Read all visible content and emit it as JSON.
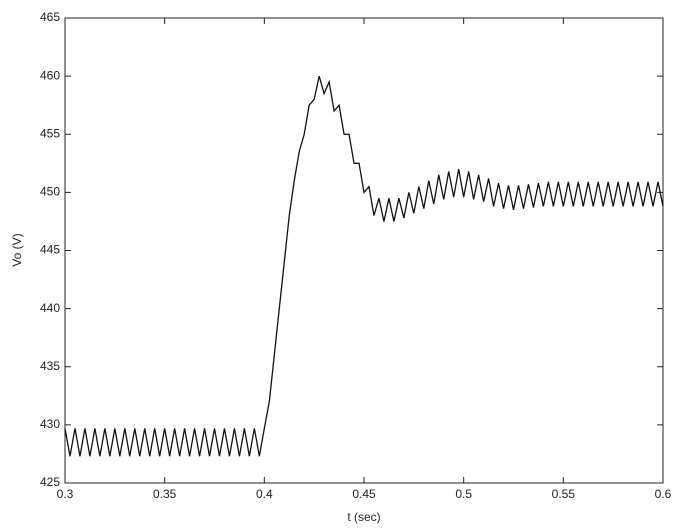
{
  "chart_data": {
    "type": "line",
    "xlabel": "t (sec)",
    "ylabel": "Vo (V)",
    "color": "#111111",
    "xlim": [
      0.3,
      0.6
    ],
    "xticks": [
      0.3,
      0.35,
      0.4,
      0.45,
      0.5,
      0.55,
      0.6
    ],
    "ylim": [
      425,
      465
    ],
    "yticks": [
      425,
      430,
      435,
      440,
      445,
      450,
      455,
      460,
      465
    ],
    "x": [
      0.3,
      0.3025,
      0.305,
      0.3075,
      0.31,
      0.3125,
      0.315,
      0.3175,
      0.32,
      0.3225,
      0.325,
      0.3275,
      0.33,
      0.3325,
      0.335,
      0.3375,
      0.34,
      0.3425,
      0.345,
      0.3475,
      0.35,
      0.3525,
      0.355,
      0.3575,
      0.36,
      0.3625,
      0.365,
      0.3675,
      0.37,
      0.3725,
      0.375,
      0.3775,
      0.38,
      0.3825,
      0.385,
      0.3875,
      0.39,
      0.3925,
      0.395,
      0.3975,
      0.4,
      0.4025,
      0.405,
      0.4075,
      0.41,
      0.4125,
      0.415,
      0.4175,
      0.42,
      0.4225,
      0.425,
      0.4275,
      0.43,
      0.4325,
      0.435,
      0.4375,
      0.44,
      0.4425,
      0.445,
      0.4475,
      0.45,
      0.4525,
      0.455,
      0.4575,
      0.46,
      0.4625,
      0.465,
      0.4675,
      0.47,
      0.4725,
      0.475,
      0.4775,
      0.48,
      0.4825,
      0.485,
      0.4875,
      0.49,
      0.4925,
      0.495,
      0.4975,
      0.5,
      0.5025,
      0.505,
      0.5075,
      0.51,
      0.5125,
      0.515,
      0.5175,
      0.52,
      0.5225,
      0.525,
      0.5275,
      0.53,
      0.5325,
      0.535,
      0.5375,
      0.54,
      0.5425,
      0.545,
      0.5475,
      0.55,
      0.5525,
      0.555,
      0.5575,
      0.56,
      0.5625,
      0.565,
      0.5675,
      0.57,
      0.5725,
      0.575,
      0.5775,
      0.58,
      0.5825,
      0.585,
      0.5875,
      0.59,
      0.5925,
      0.595,
      0.5975,
      0.6
    ],
    "values": [
      429.7,
      427.3,
      429.7,
      427.3,
      429.7,
      427.3,
      429.7,
      427.3,
      429.7,
      427.3,
      429.7,
      427.3,
      429.7,
      427.3,
      429.7,
      427.3,
      429.7,
      427.3,
      429.7,
      427.3,
      429.7,
      427.3,
      429.7,
      427.3,
      429.7,
      427.3,
      429.7,
      427.3,
      429.7,
      427.3,
      429.7,
      427.3,
      429.7,
      427.3,
      429.7,
      427.3,
      429.7,
      427.3,
      429.7,
      427.3,
      429.7,
      432,
      436,
      440,
      444,
      448,
      451,
      453.5,
      455,
      457.5,
      458,
      460,
      458.5,
      459.5,
      457,
      457.5,
      455,
      455,
      452.5,
      452.5,
      450,
      450.5,
      448,
      449.5,
      447.5,
      449.5,
      447.5,
      449.5,
      447.8,
      450,
      448.2,
      450.5,
      448.6,
      451,
      449,
      451.5,
      449.4,
      451.8,
      449.6,
      452,
      449.6,
      451.8,
      449.4,
      451.5,
      449.2,
      451.2,
      448.8,
      450.8,
      448.6,
      450.6,
      448.5,
      450.6,
      448.6,
      450.7,
      448.7,
      450.8,
      448.8,
      450.9,
      448.8,
      450.9,
      448.8,
      450.9,
      448.8,
      450.9,
      448.8,
      450.9,
      448.8,
      450.9,
      448.8,
      450.9,
      448.8,
      450.9,
      448.8,
      450.9,
      448.8,
      450.9,
      448.8,
      450.9,
      448.8,
      450.9,
      448.8
    ]
  }
}
